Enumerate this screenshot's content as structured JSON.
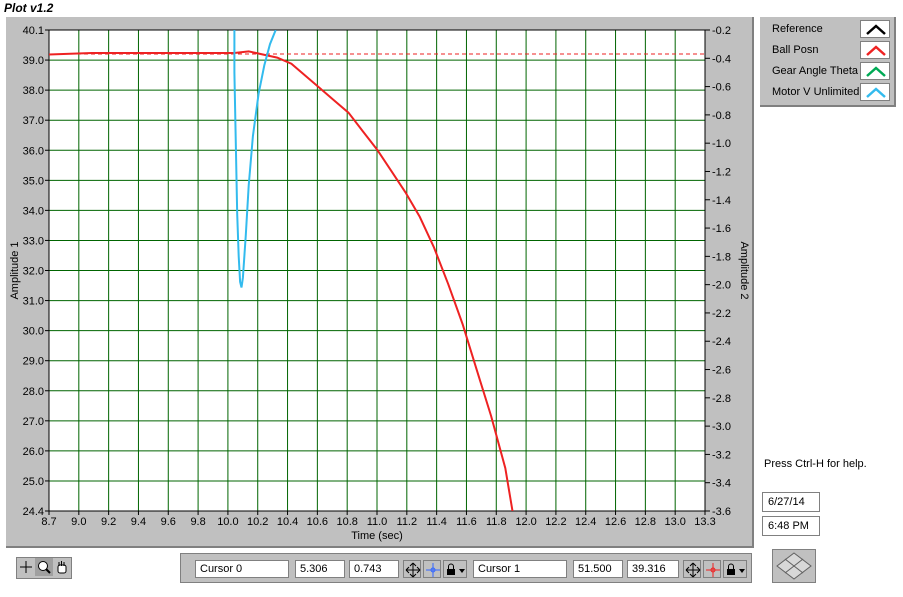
{
  "window": {
    "title": "Plot v1.2"
  },
  "chart_data": {
    "type": "line",
    "xlabel": "Time (sec)",
    "ylabel_left": "Amplitude 1",
    "ylabel_right": "Amplitude 2",
    "xlim": [
      8.7,
      13.3
    ],
    "ylim_left": [
      24.4,
      40.1
    ],
    "ylim_right": [
      -3.6,
      -0.2
    ],
    "x_ticks": [
      "8.7",
      "9.0",
      "9.2",
      "9.4",
      "9.6",
      "9.8",
      "10.0",
      "10.2",
      "10.4",
      "10.6",
      "10.8",
      "11.0",
      "11.2",
      "11.4",
      "11.6",
      "11.8",
      "12.0",
      "12.2",
      "12.4",
      "12.6",
      "12.8",
      "13.0",
      "13.3"
    ],
    "y_left_ticks": [
      "40.1",
      "39.0",
      "38.0",
      "37.0",
      "36.0",
      "35.0",
      "34.0",
      "33.0",
      "32.0",
      "31.0",
      "30.0",
      "29.0",
      "28.0",
      "27.0",
      "26.0",
      "25.0",
      "24.4"
    ],
    "y_right_ticks": [
      "-0.2",
      "-0.4",
      "-0.6",
      "-0.8",
      "-1.0",
      "-1.2",
      "-1.4",
      "-1.6",
      "-1.8",
      "-2.0",
      "-2.2",
      "-2.4",
      "-2.6",
      "-2.8",
      "-3.0",
      "-3.2",
      "-3.4",
      "-3.6"
    ],
    "grid": true,
    "reference_value": 39.316,
    "series": [
      {
        "name": "Reference",
        "axis": "left",
        "color": "#000000",
        "x": [],
        "y": []
      },
      {
        "name": "Ball Posn",
        "axis": "left",
        "color": "#ee2222",
        "x": [
          8.7,
          9.0,
          9.5,
          10.0,
          10.1,
          10.2,
          10.3,
          10.4,
          10.5,
          10.6,
          10.7,
          10.8,
          10.9,
          11.0,
          11.1,
          11.2,
          11.3,
          11.4,
          11.5,
          11.6,
          11.7,
          11.8,
          11.9,
          11.95
        ],
        "y": [
          39.3,
          39.35,
          39.35,
          39.35,
          39.4,
          39.3,
          39.2,
          39.0,
          38.6,
          38.2,
          37.8,
          37.4,
          36.8,
          36.2,
          35.5,
          34.8,
          34.0,
          33.0,
          31.8,
          30.5,
          29.0,
          27.5,
          25.8,
          24.4
        ]
      },
      {
        "name": "Gear Angle Theta",
        "axis": "right",
        "color": "#00aa55",
        "x": [],
        "y": []
      },
      {
        "name": "Motor V Unlimited",
        "axis": "right",
        "color": "#33bbee",
        "x": [
          10.0,
          10.0,
          10.01,
          10.02,
          10.03,
          10.04,
          10.05,
          10.06,
          10.08,
          10.1,
          10.13,
          10.17,
          10.21,
          10.25,
          10.29
        ],
        "y": [
          -0.2,
          -0.5,
          -1.0,
          -1.5,
          -1.8,
          -1.98,
          -2.02,
          -1.95,
          -1.65,
          -1.3,
          -0.95,
          -0.65,
          -0.45,
          -0.3,
          -0.2
        ]
      }
    ]
  },
  "legend": {
    "items": [
      {
        "label": "Reference",
        "color": "#000000"
      },
      {
        "label": "Ball Posn",
        "color": "#ee2222"
      },
      {
        "label": "Gear Angle Theta",
        "color": "#00aa55"
      },
      {
        "label": "Motor V Unlimited",
        "color": "#33bbee"
      }
    ]
  },
  "help": {
    "text": "Press Ctrl-H for help."
  },
  "status": {
    "date": "6/27/14",
    "time": "6:48 PM"
  },
  "cursors": [
    {
      "name": "Cursor 0",
      "x": "5.306",
      "y": "0.743",
      "color": "#3366ff"
    },
    {
      "name": "Cursor 1",
      "x": "51.500",
      "y": "39.316",
      "color": "#ee2222"
    }
  ],
  "toolbar": {
    "tools": [
      {
        "name": "cursor-move-tool",
        "icon": "crosshair-icon"
      },
      {
        "name": "zoom-tool",
        "icon": "magnifier-icon"
      },
      {
        "name": "pan-tool",
        "icon": "hand-icon"
      }
    ]
  }
}
